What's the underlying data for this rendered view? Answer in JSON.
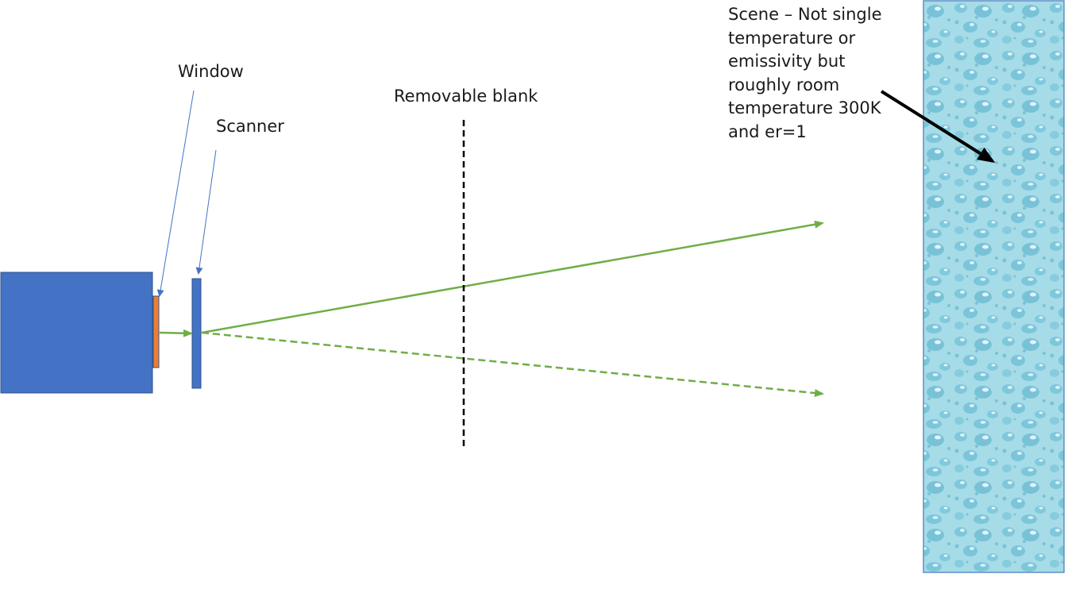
{
  "labels": {
    "window": "Window",
    "scanner": "Scanner",
    "removable_blank": "Removable blank",
    "scene": "Scene – Not single temperature or emissivity but roughly room temperature 300K and er=1"
  },
  "colors": {
    "camera_body": "#4472c4",
    "camera_border": "#2f528f",
    "window": "#ed7d31",
    "scanner": "#4472c4",
    "beam": "#70ad47",
    "pointer_line": "#4472c4",
    "blank_line": "#000000",
    "scene_fill": "#9ed8e6",
    "scene_border": "#5b8fc7"
  },
  "icons": {
    "camera": "camera-body",
    "scene": "water-droplet-texture"
  }
}
